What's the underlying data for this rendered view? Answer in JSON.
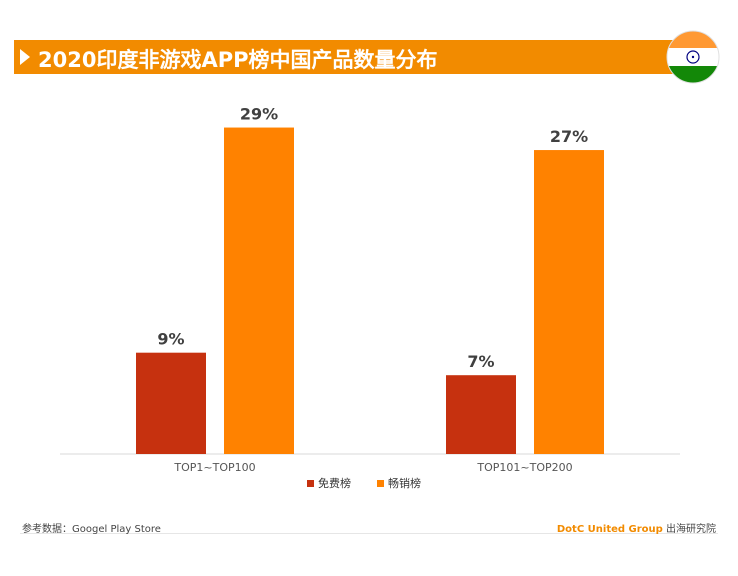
{
  "header": {
    "title": "2020印度非游戏APP榜中国产品数量分布",
    "flag_icon": "india-flag-icon"
  },
  "colors": {
    "accent": "#f28b00",
    "free": "#c6310f",
    "paid": "#ff8200",
    "axis": "#d9d9d9",
    "label": "#404040"
  },
  "chart_data": {
    "type": "bar",
    "categories": [
      "TOP1~TOP100",
      "TOP101~TOP200"
    ],
    "series": [
      {
        "name": "免费榜",
        "values": [
          9,
          7
        ],
        "labels": [
          "9%",
          "7%"
        ]
      },
      {
        "name": "畅销榜",
        "values": [
          29,
          27
        ],
        "labels": [
          "29%",
          "27%"
        ]
      }
    ],
    "ylim": [
      0,
      35
    ],
    "grid": false,
    "legend": "bottom-center"
  },
  "footer": {
    "source": "参考数据：Googel Play Store",
    "brand": "DotC United Group",
    "brand_suffix": " 出海研究院"
  }
}
